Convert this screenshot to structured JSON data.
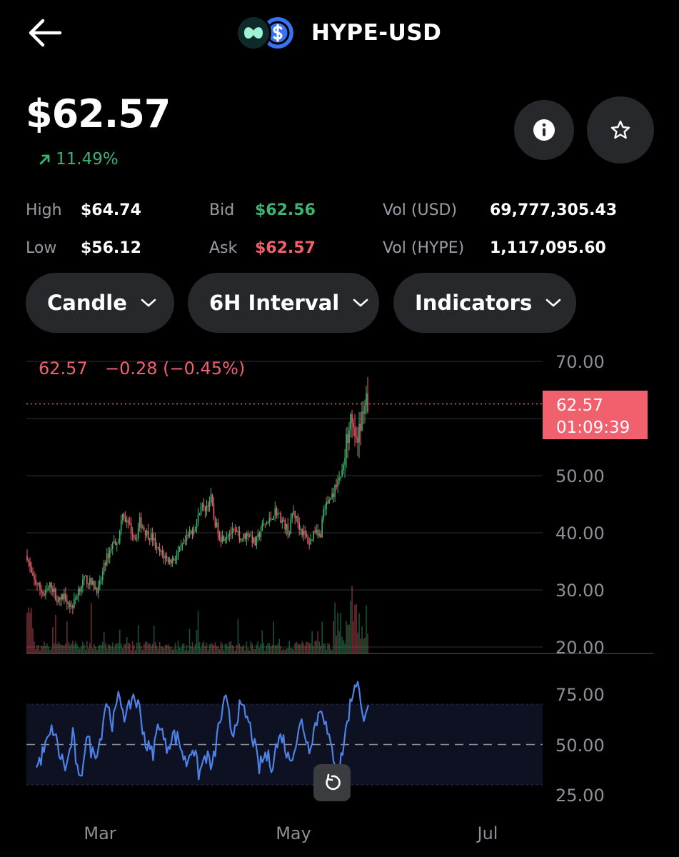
{
  "header": {
    "pair": "HYPE-USD"
  },
  "price": "$62.57",
  "change": "11.49%",
  "stats": {
    "high_label": "High",
    "high": "$64.74",
    "low_label": "Low",
    "low": "$56.12",
    "bid_label": "Bid",
    "bid": "$62.56",
    "ask_label": "Ask",
    "ask": "$62.57",
    "vol_usd_label": "Vol (USD)",
    "vol_usd": "69,777,305.43",
    "vol_hype_label": "Vol (HYPE)",
    "vol_hype": "1,117,095.60"
  },
  "controls": {
    "chart_type": "Candle",
    "interval": "6H Interval",
    "indicators": "Indicators"
  },
  "legend": {
    "last": "62.57",
    "delta": "−0.28 (−0.45%)"
  },
  "price_tag": {
    "price": "62.57",
    "countdown": "01:09:39"
  },
  "icons": {
    "back": "arrow-left-icon",
    "info": "info-icon",
    "star": "star-icon",
    "chevron": "chevron-down-icon",
    "refresh": "refresh-icon"
  },
  "colors": {
    "up": "#3cb371",
    "down": "#f0616d",
    "rsi": "#4f82e8",
    "background": "#000000"
  },
  "chart_data": {
    "type": "candlestick",
    "price_axis": {
      "ticks": [
        "70.00",
        "50.00",
        "40.00",
        "30.00",
        "20.00"
      ],
      "ylim": [
        20,
        70
      ]
    },
    "rsi_axis": {
      "ticks": [
        "75.00",
        "50.00",
        "25.00"
      ],
      "ylim": [
        20,
        85
      ],
      "band": [
        30,
        70
      ],
      "midline": 50
    },
    "x_ticks": [
      "Mar",
      "May",
      "Jul"
    ],
    "last_price": 62.57,
    "price_path": [
      [
        0,
        36
      ],
      [
        0.015,
        32
      ],
      [
        0.03,
        31
      ],
      [
        0.05,
        29
      ],
      [
        0.07,
        31
      ],
      [
        0.09,
        28
      ],
      [
        0.11,
        29
      ],
      [
        0.13,
        27
      ],
      [
        0.14,
        28
      ],
      [
        0.15,
        30
      ],
      [
        0.17,
        32
      ],
      [
        0.19,
        31
      ],
      [
        0.21,
        30
      ],
      [
        0.23,
        35
      ],
      [
        0.25,
        38
      ],
      [
        0.27,
        39
      ],
      [
        0.28,
        44
      ],
      [
        0.29,
        42
      ],
      [
        0.31,
        40
      ],
      [
        0.32,
        39
      ],
      [
        0.33,
        42
      ],
      [
        0.35,
        40
      ],
      [
        0.37,
        39
      ],
      [
        0.38,
        37
      ],
      [
        0.4,
        36
      ],
      [
        0.42,
        35
      ],
      [
        0.44,
        36
      ],
      [
        0.46,
        38
      ],
      [
        0.48,
        40
      ],
      [
        0.5,
        42
      ],
      [
        0.51,
        45
      ],
      [
        0.52,
        44
      ],
      [
        0.54,
        46
      ],
      [
        0.55,
        42
      ],
      [
        0.57,
        39
      ],
      [
        0.59,
        40
      ],
      [
        0.61,
        40
      ],
      [
        0.63,
        39
      ],
      [
        0.65,
        40
      ],
      [
        0.67,
        38
      ],
      [
        0.69,
        41
      ],
      [
        0.71,
        42
      ],
      [
        0.73,
        44
      ],
      [
        0.75,
        42
      ],
      [
        0.77,
        40
      ],
      [
        0.78,
        44
      ],
      [
        0.8,
        41
      ],
      [
        0.82,
        39
      ],
      [
        0.83,
        38
      ],
      [
        0.84,
        40
      ],
      [
        0.85,
        41
      ],
      [
        0.86,
        39
      ],
      [
        0.87,
        44
      ],
      [
        0.88,
        45
      ],
      [
        0.9,
        47
      ],
      [
        0.91,
        49
      ],
      [
        0.92,
        50
      ],
      [
        0.93,
        52
      ],
      [
        0.94,
        57
      ],
      [
        0.95,
        62
      ],
      [
        0.96,
        58
      ],
      [
        0.97,
        55
      ],
      [
        0.98,
        60
      ],
      [
        0.99,
        63
      ],
      [
        1,
        62.57
      ]
    ],
    "rsi_path": [
      [
        0,
        38
      ],
      [
        0.03,
        50
      ],
      [
        0.05,
        58
      ],
      [
        0.07,
        45
      ],
      [
        0.09,
        38
      ],
      [
        0.11,
        55
      ],
      [
        0.13,
        28
      ],
      [
        0.15,
        55
      ],
      [
        0.17,
        45
      ],
      [
        0.19,
        50
      ],
      [
        0.21,
        72
      ],
      [
        0.23,
        60
      ],
      [
        0.25,
        75
      ],
      [
        0.27,
        62
      ],
      [
        0.29,
        75
      ],
      [
        0.31,
        68
      ],
      [
        0.33,
        50
      ],
      [
        0.35,
        45
      ],
      [
        0.37,
        62
      ],
      [
        0.39,
        48
      ],
      [
        0.41,
        55
      ],
      [
        0.43,
        52
      ],
      [
        0.45,
        40
      ],
      [
        0.47,
        50
      ],
      [
        0.49,
        35
      ],
      [
        0.51,
        45
      ],
      [
        0.53,
        38
      ],
      [
        0.55,
        60
      ],
      [
        0.57,
        72
      ],
      [
        0.59,
        55
      ],
      [
        0.61,
        68
      ],
      [
        0.63,
        65
      ],
      [
        0.65,
        55
      ],
      [
        0.67,
        38
      ],
      [
        0.69,
        45
      ],
      [
        0.71,
        40
      ],
      [
        0.72,
        48
      ],
      [
        0.74,
        55
      ],
      [
        0.76,
        42
      ],
      [
        0.78,
        50
      ],
      [
        0.8,
        62
      ],
      [
        0.82,
        48
      ],
      [
        0.84,
        60
      ],
      [
        0.86,
        70
      ],
      [
        0.88,
        52
      ],
      [
        0.9,
        42
      ],
      [
        0.91,
        35
      ],
      [
        0.92,
        45
      ],
      [
        0.94,
        65
      ],
      [
        0.96,
        82
      ],
      [
        0.97,
        80
      ],
      [
        0.98,
        62
      ],
      [
        0.99,
        68
      ],
      [
        1,
        72
      ]
    ]
  }
}
